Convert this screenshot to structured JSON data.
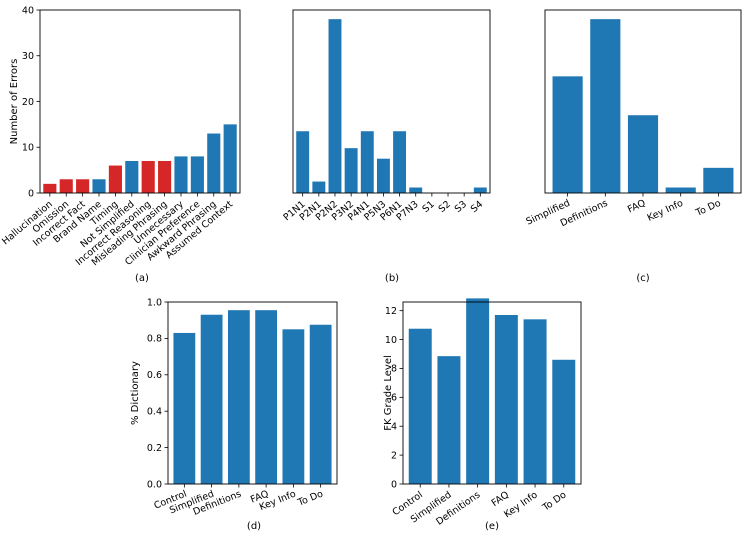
{
  "colors": {
    "blue": "#1f77b4",
    "red": "#d62728"
  },
  "chart_data": [
    {
      "id": "a",
      "caption": "(a)",
      "type": "bar",
      "ylabel": "Number of Errors",
      "ylim": [
        0,
        40
      ],
      "yticks": [
        0,
        10,
        20,
        30,
        40
      ],
      "categories": [
        "Hallucination",
        "Omission",
        "Incorrect Fact",
        "Brand Name",
        "Timing",
        "Not Simplified",
        "Incorrect Reasoning",
        "Misleading Phrasing",
        "Unnecessary",
        "Clinician Preference",
        "Awkward Phrasing",
        "Assumed Context"
      ],
      "values": [
        2,
        3,
        3,
        3,
        6,
        7,
        7,
        7,
        8,
        8,
        13,
        15
      ],
      "bar_colors": [
        "red",
        "red",
        "red",
        "blue",
        "red",
        "blue",
        "red",
        "red",
        "blue",
        "blue",
        "blue",
        "blue"
      ]
    },
    {
      "id": "b",
      "caption": "(b)",
      "type": "bar",
      "ylim": [
        0,
        40
      ],
      "yticks": [],
      "categories": [
        "P1N1",
        "P2N1",
        "P2N2",
        "P3N2",
        "P4N1",
        "P5N3",
        "P6N1",
        "P7N3",
        "S1",
        "S2",
        "S3",
        "S4"
      ],
      "values": [
        13.5,
        2.5,
        38,
        9.8,
        13.5,
        7.5,
        13.5,
        1.2,
        0,
        0,
        0,
        1.2
      ],
      "bar_colors": [
        "blue",
        "blue",
        "blue",
        "blue",
        "blue",
        "blue",
        "blue",
        "blue",
        "blue",
        "blue",
        "blue",
        "blue"
      ]
    },
    {
      "id": "c",
      "caption": "(c)",
      "type": "bar",
      "ylim": [
        0,
        40
      ],
      "yticks": [],
      "categories": [
        "Simplified",
        "Definitions",
        "FAQ",
        "Key Info",
        "To Do"
      ],
      "values": [
        25.5,
        38,
        17,
        1.2,
        5.5
      ],
      "bar_colors": [
        "blue",
        "blue",
        "blue",
        "blue",
        "blue"
      ]
    },
    {
      "id": "d",
      "caption": "(d)",
      "type": "bar",
      "ylabel": "% Dictionary",
      "ylim": [
        0,
        1.0
      ],
      "yticks": [
        0.0,
        0.2,
        0.4,
        0.6,
        0.8,
        1.0
      ],
      "categories": [
        "Control",
        "Simplified",
        "Definitions",
        "FAQ",
        "Key Info",
        "To Do"
      ],
      "values": [
        0.83,
        0.93,
        0.955,
        0.955,
        0.85,
        0.875
      ],
      "bar_colors": [
        "blue",
        "blue",
        "blue",
        "blue",
        "blue",
        "blue"
      ]
    },
    {
      "id": "e",
      "caption": "(e)",
      "type": "bar",
      "ylabel": "FK Grade Level",
      "ylim": [
        0,
        12.6
      ],
      "yticks": [
        0,
        2,
        4,
        6,
        8,
        10,
        12
      ],
      "categories": [
        "Control",
        "Simplified",
        "Definitions",
        "FAQ",
        "Key Info",
        "To Do"
      ],
      "values": [
        10.75,
        8.85,
        12.85,
        11.7,
        11.4,
        8.6
      ],
      "bar_colors": [
        "blue",
        "blue",
        "blue",
        "blue",
        "blue",
        "blue"
      ]
    }
  ]
}
